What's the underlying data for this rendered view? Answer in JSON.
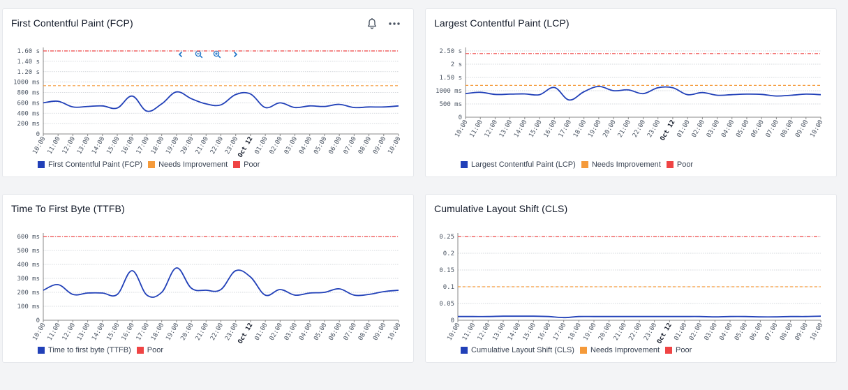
{
  "colors": {
    "series": "#2140b8",
    "needs": "#f59a3a",
    "poor": "#ef4444",
    "grid": "#c8ccd2",
    "axis": "#888"
  },
  "panels": [
    {
      "title": "First Contentful Paint (FCP)",
      "show_actions": true,
      "actions": [
        "bell-icon",
        "more-options-icon"
      ],
      "zoom_controls": [
        "chevron-left-icon",
        "zoom-out-icon",
        "zoom-in-icon",
        "chevron-right-icon"
      ],
      "legend": [
        {
          "label": "First Contentful Paint (FCP)",
          "color": "#2140b8"
        },
        {
          "label": "Needs Improvement",
          "color": "#f59a3a"
        },
        {
          "label": "Poor",
          "color": "#ef4444"
        }
      ]
    },
    {
      "title": "Largest Contentful Paint (LCP)",
      "show_actions": false,
      "legend": [
        {
          "label": "Largest Contentful Paint (LCP)",
          "color": "#2140b8"
        },
        {
          "label": "Needs Improvement",
          "color": "#f59a3a"
        },
        {
          "label": "Poor",
          "color": "#ef4444"
        }
      ]
    },
    {
      "title": "Time To First Byte (TTFB)",
      "show_actions": false,
      "legend": [
        {
          "label": "Time to first byte (TTFB)",
          "color": "#2140b8"
        },
        {
          "label": "Poor",
          "color": "#ef4444"
        }
      ]
    },
    {
      "title": "Cumulative Layout Shift (CLS)",
      "show_actions": false,
      "legend": [
        {
          "label": "Cumulative Layout Shift (CLS)",
          "color": "#2140b8"
        },
        {
          "label": "Needs Improvement",
          "color": "#f59a3a"
        },
        {
          "label": "Poor",
          "color": "#ef4444"
        }
      ]
    }
  ],
  "chart_data": [
    {
      "type": "line",
      "title": "First Contentful Paint (FCP)",
      "x": [
        "10:00",
        "11:00",
        "12:00",
        "13:00",
        "14:00",
        "15:00",
        "16:00",
        "17:00",
        "18:00",
        "19:00",
        "20:00",
        "21:00",
        "22:00",
        "23:00",
        "Oct 12",
        "01:00",
        "02:00",
        "03:00",
        "04:00",
        "05:00",
        "06:00",
        "07:00",
        "08:00",
        "09:00",
        "10:00"
      ],
      "bold_ticks": [
        "Oct 12"
      ],
      "y_ticks": [
        0,
        200,
        400,
        600,
        800,
        1000,
        1200,
        1400,
        1600
      ],
      "y_tick_labels": [
        "0",
        "200 ms",
        "400 ms",
        "600 ms",
        "800 ms",
        "1000 ms",
        "1.20 s",
        "1.40 s",
        "1.60 s"
      ],
      "ylim": [
        0,
        1600
      ],
      "grid": true,
      "legend_position": "bottom-left",
      "series": [
        {
          "name": "First Contentful Paint (FCP)",
          "values": [
            600,
            630,
            520,
            530,
            540,
            500,
            730,
            440,
            580,
            810,
            680,
            580,
            560,
            760,
            770,
            510,
            600,
            510,
            540,
            530,
            570,
            510,
            520,
            520,
            540
          ]
        }
      ],
      "thresholds": [
        {
          "name": "Needs Improvement",
          "value": 930,
          "kind": "needs"
        },
        {
          "name": "Poor",
          "value": 1600,
          "kind": "poor"
        }
      ]
    },
    {
      "type": "line",
      "title": "Largest Contentful Paint (LCP)",
      "x": [
        "10:00",
        "11:00",
        "12:00",
        "13:00",
        "14:00",
        "15:00",
        "16:00",
        "17:00",
        "18:00",
        "19:00",
        "20:00",
        "21:00",
        "22:00",
        "23:00",
        "Oct 12",
        "01:00",
        "02:00",
        "03:00",
        "04:00",
        "05:00",
        "06:00",
        "07:00",
        "08:00",
        "09:00",
        "10:00"
      ],
      "bold_ticks": [
        "Oct 12"
      ],
      "y_ticks": [
        0,
        500,
        1000,
        1500,
        2000,
        2500
      ],
      "y_tick_labels": [
        "0",
        "500 ms",
        "1000 ms",
        "1.50 s",
        "2 s",
        "2.50 s"
      ],
      "ylim": [
        0,
        2500
      ],
      "grid": true,
      "legend_position": "bottom-left",
      "series": [
        {
          "name": "Largest Contentful Paint (LCP)",
          "values": [
            890,
            940,
            860,
            870,
            880,
            850,
            1120,
            650,
            960,
            1160,
            1000,
            1030,
            890,
            1110,
            1110,
            850,
            930,
            830,
            850,
            870,
            860,
            800,
            830,
            870,
            850
          ]
        }
      ],
      "thresholds": [
        {
          "name": "Needs Improvement",
          "value": 1200,
          "kind": "needs"
        },
        {
          "name": "Poor",
          "value": 2400,
          "kind": "poor"
        }
      ]
    },
    {
      "type": "line",
      "title": "Time To First Byte (TTFB)",
      "x": [
        "10:00",
        "11:00",
        "12:00",
        "13:00",
        "14:00",
        "15:00",
        "16:00",
        "17:00",
        "18:00",
        "19:00",
        "20:00",
        "21:00",
        "22:00",
        "23:00",
        "Oct 12",
        "01:00",
        "02:00",
        "03:00",
        "04:00",
        "05:00",
        "06:00",
        "07:00",
        "08:00",
        "09:00",
        "10:00"
      ],
      "bold_ticks": [
        "Oct 12"
      ],
      "y_ticks": [
        0,
        100,
        200,
        300,
        400,
        500,
        600
      ],
      "y_tick_labels": [
        "0",
        "100 ms",
        "200 ms",
        "300 ms",
        "400 ms",
        "500 ms",
        "600 ms"
      ],
      "ylim": [
        0,
        600
      ],
      "grid": true,
      "legend_position": "bottom-left",
      "series": [
        {
          "name": "Time to first byte (TTFB)",
          "values": [
            215,
            255,
            185,
            195,
            195,
            185,
            355,
            180,
            200,
            375,
            230,
            215,
            220,
            355,
            310,
            180,
            220,
            180,
            195,
            200,
            225,
            180,
            185,
            205,
            215
          ]
        }
      ],
      "thresholds": [
        {
          "name": "Poor",
          "value": 600,
          "kind": "poor"
        }
      ]
    },
    {
      "type": "line",
      "title": "Cumulative Layout Shift (CLS)",
      "x": [
        "10:00",
        "11:00",
        "12:00",
        "13:00",
        "14:00",
        "15:00",
        "16:00",
        "17:00",
        "18:00",
        "19:00",
        "20:00",
        "21:00",
        "22:00",
        "23:00",
        "Oct 12",
        "01:00",
        "02:00",
        "03:00",
        "04:00",
        "05:00",
        "06:00",
        "07:00",
        "08:00",
        "09:00",
        "10:00"
      ],
      "bold_ticks": [
        "Oct 12"
      ],
      "y_ticks": [
        0,
        0.05,
        0.1,
        0.15,
        0.2,
        0.25
      ],
      "y_tick_labels": [
        "0",
        "0.05",
        "0.1",
        "0.15",
        "0.2",
        "0.25"
      ],
      "ylim": [
        0,
        0.25
      ],
      "grid": true,
      "legend_position": "bottom-left",
      "series": [
        {
          "name": "Cumulative Layout Shift (CLS)",
          "values": [
            0.011,
            0.011,
            0.011,
            0.012,
            0.012,
            0.012,
            0.011,
            0.008,
            0.011,
            0.011,
            0.011,
            0.011,
            0.011,
            0.011,
            0.011,
            0.011,
            0.011,
            0.01,
            0.011,
            0.011,
            0.01,
            0.01,
            0.011,
            0.011,
            0.012
          ]
        }
      ],
      "thresholds": [
        {
          "name": "Needs Improvement",
          "value": 0.1,
          "kind": "needs"
        },
        {
          "name": "Poor",
          "value": 0.25,
          "kind": "poor"
        }
      ]
    }
  ]
}
